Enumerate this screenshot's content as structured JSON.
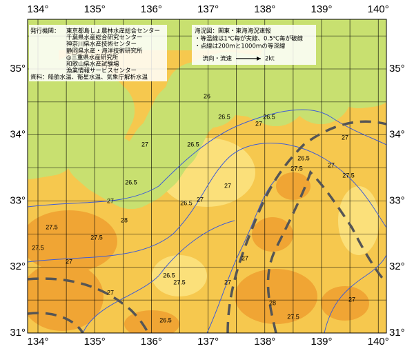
{
  "map": {
    "lon_labels": [
      "134°",
      "135°",
      "136°",
      "137°",
      "138°",
      "139°",
      "140°"
    ],
    "lat_labels": [
      "35°",
      "34°",
      "33°",
      "32°",
      "31°"
    ],
    "issuers_heading": "発行機関：",
    "issuers": [
      "東京都島しょ農林水産総合センター",
      "千葉県水産総合研究センター",
      "神奈川県水産技術センター",
      "静岡県水産・海洋技術研究所",
      "◎三重県水産研究所",
      "和歌山県水産試験場",
      "漁業情報サービスセンター"
    ],
    "source": "資料：船舶水温、衛星水温、気象庁解析水温",
    "notes": [
      "海況図：関東・東海海況速報",
      "・等温線は1℃毎が実線、0.5℃毎が破線",
      "・点線は200ｍと1000ｍの等深線"
    ],
    "current_label": "流向・流速",
    "current_scale": "2kt",
    "contour_labels": [
      "26.5",
      "27",
      "27.5",
      "26",
      "26.5",
      "27",
      "27",
      "27.5",
      "26.5",
      "27",
      "26.5",
      "27",
      "27.5",
      "27.5",
      "28",
      "27.5",
      "26.5",
      "27",
      "27.5",
      "27",
      "27",
      "27",
      "26.5",
      "28",
      "27.5",
      "27",
      "26.5",
      "27",
      "26.5",
      "27"
    ]
  }
}
